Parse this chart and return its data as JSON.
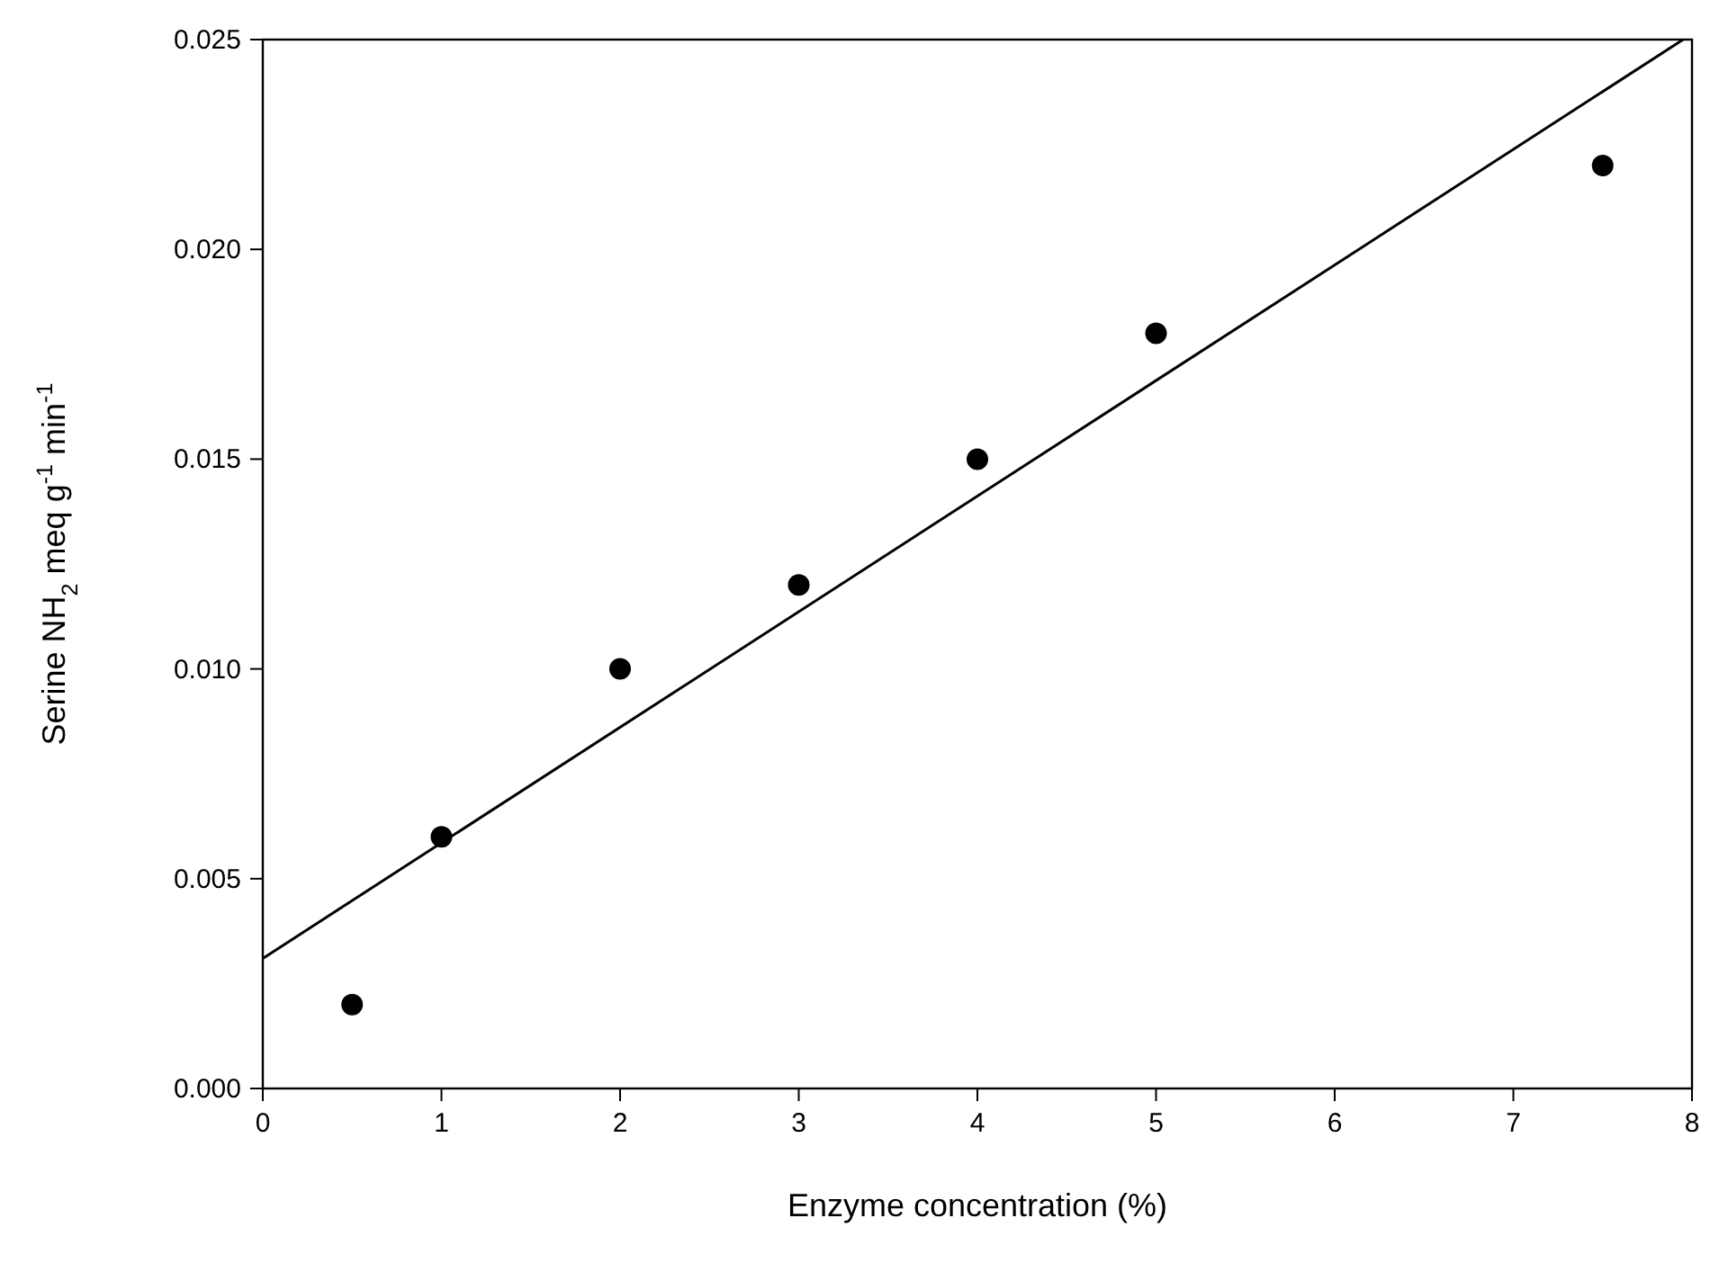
{
  "chart_data": {
    "type": "scatter",
    "xlabel": "Enzyme concentration (%)",
    "ylabel": "Serine NH$_{2}$ meq g$^{-1}$ min$^{-1}$",
    "xlim": [
      0,
      8
    ],
    "xticks": [
      0,
      1,
      2,
      3,
      4,
      5,
      6,
      7,
      8
    ],
    "ylim": [
      0,
      0.025
    ],
    "yticks": [
      {
        "value": 0,
        "label": "0.000"
      },
      {
        "value": 0.005,
        "label": "0.005"
      },
      {
        "value": 0.01,
        "label": "0.010"
      },
      {
        "value": 0.015,
        "label": "0.015"
      },
      {
        "value": 0.02,
        "label": "0.020"
      },
      {
        "value": 0.025,
        "label": "0.025"
      }
    ],
    "grid": false,
    "series": [
      {
        "marker": "circle",
        "color": "#000000",
        "x": [
          0.5,
          1,
          2,
          3,
          4,
          5,
          7.5
        ],
        "values": [
          0.002,
          0.006,
          0.01,
          0.012,
          0.015,
          0.018,
          0.022
        ]
      },
      {
        "type": "line",
        "color": "#000000",
        "line_style": "solid",
        "x": [
          0,
          7.95
        ],
        "values": [
          0.0031,
          0.025
        ]
      }
    ]
  }
}
